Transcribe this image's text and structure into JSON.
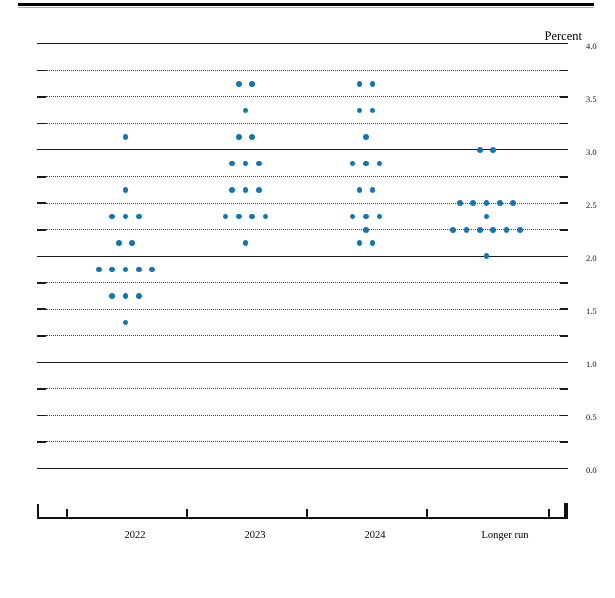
{
  "chart_data": {
    "type": "scatter",
    "variant": "fomc-dot-plot",
    "title": "",
    "ylabel": "Percent",
    "xlabel": "",
    "ylim": [
      0.0,
      4.0
    ],
    "grid_step": 0.25,
    "grid_solid_at_integers": true,
    "legend": "none",
    "y_tick_labels": [
      "4.0",
      "3.5",
      "3.0",
      "2.5",
      "2.0",
      "1.5",
      "1.0",
      "0.5",
      "0.0"
    ],
    "categories": [
      "2022",
      "2023",
      "2024",
      "Longer run"
    ],
    "dot_color": "#1476af",
    "series": [
      {
        "name": "2022",
        "dots": [
          {
            "value": 3.125,
            "count": 1
          },
          {
            "value": 2.625,
            "count": 1
          },
          {
            "value": 2.375,
            "count": 3
          },
          {
            "value": 2.125,
            "count": 2
          },
          {
            "value": 1.875,
            "count": 5
          },
          {
            "value": 1.625,
            "count": 3
          },
          {
            "value": 1.375,
            "count": 1
          }
        ]
      },
      {
        "name": "2023",
        "dots": [
          {
            "value": 3.625,
            "count": 2
          },
          {
            "value": 3.375,
            "count": 1
          },
          {
            "value": 3.125,
            "count": 2
          },
          {
            "value": 2.875,
            "count": 3
          },
          {
            "value": 2.625,
            "count": 3
          },
          {
            "value": 2.375,
            "count": 4
          },
          {
            "value": 2.125,
            "count": 1
          }
        ]
      },
      {
        "name": "2024",
        "dots": [
          {
            "value": 3.625,
            "count": 2
          },
          {
            "value": 3.375,
            "count": 2
          },
          {
            "value": 3.125,
            "count": 1
          },
          {
            "value": 2.875,
            "count": 3
          },
          {
            "value": 2.625,
            "count": 2
          },
          {
            "value": 2.375,
            "count": 3
          },
          {
            "value": 2.25,
            "count": 1
          },
          {
            "value": 2.125,
            "count": 2
          }
        ]
      },
      {
        "name": "Longer run",
        "dots": [
          {
            "value": 3.0,
            "count": 2
          },
          {
            "value": 2.5,
            "count": 5
          },
          {
            "value": 2.375,
            "count": 1
          },
          {
            "value": 2.25,
            "count": 6
          },
          {
            "value": 2.0,
            "count": 1
          }
        ]
      }
    ]
  }
}
